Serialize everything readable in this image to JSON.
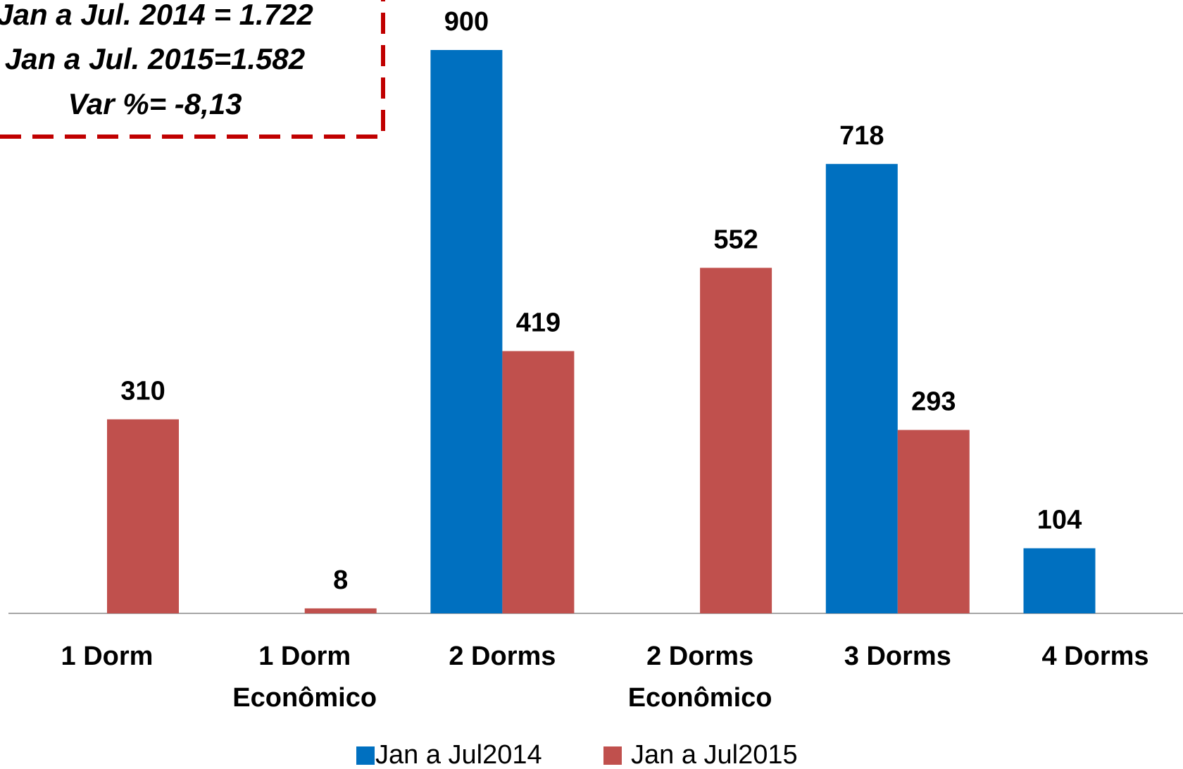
{
  "chart_data": {
    "type": "bar",
    "categories": [
      "1 Dorm",
      "1 Dorm\nEconômico",
      "2 Dorms",
      "2 Dorms\nEconômico",
      "3 Dorms",
      "4 Dorms"
    ],
    "series": [
      {
        "name": "Jan a Jul2014",
        "color": "#0070c0",
        "values": [
          null,
          null,
          900,
          null,
          718,
          104
        ]
      },
      {
        "name": "Jan a Jul2015",
        "color": "#c0504d",
        "values": [
          310,
          8,
          419,
          552,
          293,
          null
        ]
      }
    ],
    "annotations": [
      "Jan a Jul. 2014 = 1.722",
      "Jan a Jul. 2015=1.582",
      "Var %= -8,13"
    ],
    "legend": "bottom"
  }
}
